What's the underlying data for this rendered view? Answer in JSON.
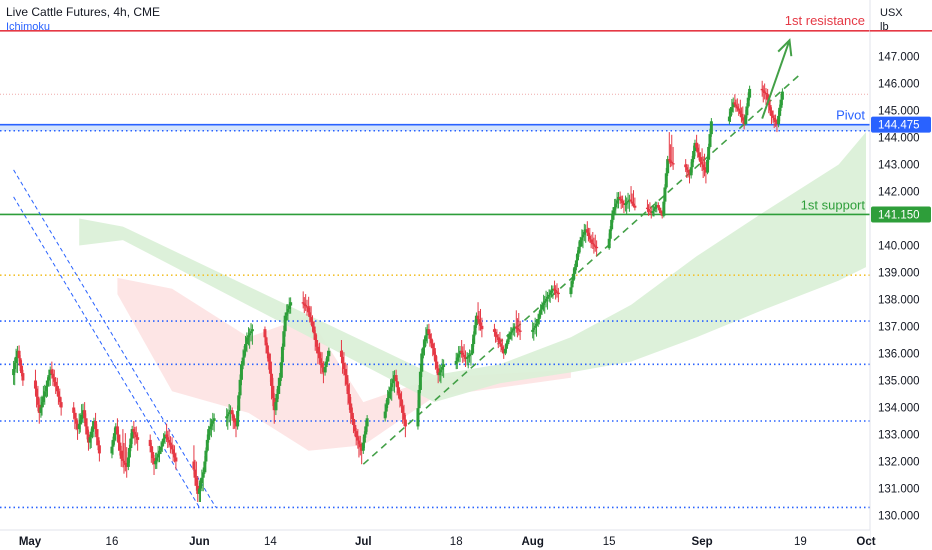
{
  "header": {
    "title": "Live Cattle Futures, 4h, CME",
    "indicator": "Ichimoku"
  },
  "price_axis": {
    "currency": "USX",
    "unit": "lb",
    "ticks": [
      "147.000",
      "146.000",
      "145.000",
      "144.000",
      "143.000",
      "142.000",
      "141.000",
      "140.000",
      "139.000",
      "138.000",
      "137.000",
      "136.000",
      "135.000",
      "134.000",
      "133.000",
      "132.000",
      "131.000",
      "130.000"
    ]
  },
  "time_axis": {
    "labels": [
      "May",
      "16",
      "Jun",
      "14",
      "Jul",
      "18",
      "Aug",
      "15",
      "Sep",
      "19",
      "Oct"
    ]
  },
  "levels": {
    "resistance": {
      "label": "1st resistance",
      "price": 147.95,
      "color": "#e53945"
    },
    "pivot": {
      "label": "Pivot",
      "price": 144.475,
      "badge": "144.475",
      "color": "#2962ff"
    },
    "support": {
      "label": "1st support",
      "price": 141.15,
      "badge": "141.150",
      "color": "#2e9e3a"
    }
  },
  "colors": {
    "up": "#2e9e3a",
    "down": "#e53945",
    "cloud_bull": "#d9f0d6",
    "cloud_bear": "#fde2e2",
    "dotted_blue": "#2962ff",
    "dotted_orange": "#f2c230",
    "arrow": "#43a047"
  },
  "chart_data": {
    "type": "candlestick",
    "title": "Live Cattle Futures, 4h, CME",
    "yunit": "USX / lb",
    "ylim": [
      129.8,
      148.6
    ],
    "x_range": [
      "2022-04-28",
      "2022-10-01"
    ],
    "x_ticks": [
      "May",
      "16",
      "Jun",
      "14",
      "Jul",
      "18",
      "Aug",
      "15",
      "Sep",
      "19",
      "Oct"
    ],
    "horizontal_lines": [
      {
        "price": 147.95,
        "style": "solid",
        "color": "#e53945",
        "label": "1st resistance"
      },
      {
        "price": 144.475,
        "style": "solid",
        "color": "#2962ff",
        "label": "Pivot"
      },
      {
        "price": 144.25,
        "style": "dotted",
        "color": "#2962ff"
      },
      {
        "price": 141.15,
        "style": "solid",
        "color": "#2e9e3a",
        "label": "1st support"
      },
      {
        "price": 138.9,
        "style": "dotted",
        "color": "#f2c230"
      },
      {
        "price": 137.2,
        "style": "dotted",
        "color": "#2962ff"
      },
      {
        "price": 135.6,
        "style": "dotted",
        "color": "#2962ff"
      },
      {
        "price": 133.5,
        "style": "dotted",
        "color": "#2962ff"
      },
      {
        "price": 130.3,
        "style": "dotted",
        "color": "#2962ff"
      }
    ],
    "pivot_zone": [
      144.25,
      144.475
    ],
    "trendline": {
      "from": [
        "2022-07-01",
        131.9
      ],
      "to": [
        "2022-09-19",
        146.35
      ],
      "style": "dashed",
      "color": "#43a047"
    },
    "channel_lines": [
      {
        "from": [
          "2022-04-28",
          141.8
        ],
        "to": [
          "2022-06-01",
          130.3
        ],
        "style": "dashed",
        "color": "#2962ff"
      },
      {
        "from": [
          "2022-04-28",
          142.8
        ],
        "to": [
          "2022-06-04",
          130.3
        ],
        "style": "dashed",
        "color": "#2962ff"
      }
    ],
    "forecast_arrow": {
      "from": [
        "2022-09-12",
        144.7
      ],
      "to": [
        "2022-09-17",
        147.6
      ]
    },
    "ohlc": [
      [
        "2022-04-28",
        135.2,
        136.4,
        134.6,
        136.1
      ],
      [
        "2022-04-29",
        136.1,
        136.3,
        134.8,
        135.0
      ],
      [
        "2022-05-02",
        135.0,
        135.4,
        133.4,
        133.8
      ],
      [
        "2022-05-03",
        133.8,
        135.0,
        133.5,
        134.6
      ],
      [
        "2022-05-04",
        134.6,
        135.6,
        134.2,
        135.4
      ],
      [
        "2022-05-05",
        135.4,
        135.7,
        134.5,
        134.8
      ],
      [
        "2022-05-06",
        134.8,
        135.1,
        133.7,
        134.0
      ],
      [
        "2022-05-09",
        134.0,
        134.2,
        132.8,
        133.2
      ],
      [
        "2022-05-10",
        133.2,
        134.3,
        132.9,
        133.9
      ],
      [
        "2022-05-11",
        133.9,
        134.2,
        132.4,
        132.7
      ],
      [
        "2022-05-12",
        132.7,
        133.7,
        132.3,
        133.5
      ],
      [
        "2022-05-13",
        133.5,
        133.8,
        132.0,
        132.3
      ],
      [
        "2022-05-16",
        132.3,
        133.5,
        132.0,
        133.3
      ],
      [
        "2022-05-17",
        133.3,
        133.6,
        131.8,
        132.1
      ],
      [
        "2022-05-18",
        132.1,
        133.2,
        131.4,
        131.8
      ],
      [
        "2022-05-19",
        131.8,
        133.4,
        131.6,
        133.2
      ],
      [
        "2022-05-20",
        133.2,
        133.5,
        132.4,
        132.8
      ],
      [
        "2022-05-23",
        132.8,
        133.0,
        131.5,
        131.9
      ],
      [
        "2022-05-24",
        131.9,
        132.7,
        131.6,
        132.4
      ],
      [
        "2022-05-25",
        132.4,
        133.2,
        132.2,
        133.0
      ],
      [
        "2022-05-26",
        133.0,
        133.4,
        132.3,
        132.6
      ],
      [
        "2022-05-27",
        132.6,
        132.9,
        131.7,
        132.0
      ],
      [
        "2022-05-31",
        132.0,
        132.6,
        130.5,
        130.8
      ],
      [
        "2022-06-01",
        130.8,
        131.9,
        130.3,
        131.6
      ],
      [
        "2022-06-02",
        131.6,
        133.4,
        131.5,
        133.2
      ],
      [
        "2022-06-03",
        133.2,
        133.9,
        132.8,
        133.6
      ],
      [
        "2022-06-06",
        133.6,
        134.2,
        133.1,
        133.9
      ],
      [
        "2022-06-07",
        133.9,
        134.0,
        132.9,
        133.3
      ],
      [
        "2022-06-08",
        133.3,
        135.8,
        133.1,
        135.6
      ],
      [
        "2022-06-09",
        135.6,
        136.9,
        135.3,
        136.6
      ],
      [
        "2022-06-10",
        136.6,
        137.2,
        136.1,
        136.9
      ],
      [
        "2022-06-13",
        136.9,
        137.0,
        135.4,
        135.7
      ],
      [
        "2022-06-14",
        135.7,
        136.0,
        133.4,
        133.9
      ],
      [
        "2022-06-15",
        133.9,
        135.4,
        133.6,
        135.1
      ],
      [
        "2022-06-16",
        135.1,
        137.6,
        134.9,
        137.4
      ],
      [
        "2022-06-17",
        137.4,
        138.2,
        137.1,
        137.9
      ],
      [
        "2022-06-20",
        137.9,
        138.3,
        137.4,
        137.7
      ],
      [
        "2022-06-21",
        137.7,
        138.1,
        136.8,
        137.0
      ],
      [
        "2022-06-22",
        137.0,
        137.2,
        135.6,
        136.0
      ],
      [
        "2022-06-23",
        136.0,
        136.4,
        134.9,
        135.3
      ],
      [
        "2022-06-24",
        135.3,
        136.3,
        135.1,
        136.1
      ],
      [
        "2022-06-27",
        136.1,
        136.5,
        134.8,
        135.2
      ],
      [
        "2022-06-28",
        135.2,
        135.6,
        133.4,
        133.8
      ],
      [
        "2022-06-29",
        133.8,
        134.0,
        132.6,
        132.9
      ],
      [
        "2022-06-30",
        132.9,
        133.2,
        131.9,
        132.4
      ],
      [
        "2022-07-01",
        132.4,
        133.8,
        132.2,
        133.6
      ],
      [
        "2022-07-05",
        133.6,
        134.9,
        133.4,
        134.6
      ],
      [
        "2022-07-06",
        134.6,
        135.5,
        134.1,
        135.2
      ],
      [
        "2022-07-07",
        135.2,
        135.4,
        134.0,
        134.3
      ],
      [
        "2022-07-08",
        134.3,
        134.6,
        132.9,
        133.3
      ],
      [
        "2022-07-11",
        133.3,
        136.3,
        133.1,
        136.0
      ],
      [
        "2022-07-12",
        136.0,
        137.2,
        135.7,
        136.9
      ],
      [
        "2022-07-13",
        136.9,
        137.1,
        135.9,
        136.2
      ],
      [
        "2022-07-14",
        136.2,
        136.4,
        134.9,
        135.2
      ],
      [
        "2022-07-15",
        135.2,
        135.9,
        134.8,
        135.6
      ],
      [
        "2022-07-18",
        135.6,
        136.4,
        135.3,
        136.1
      ],
      [
        "2022-07-19",
        136.1,
        136.5,
        135.5,
        135.8
      ],
      [
        "2022-07-20",
        135.8,
        136.2,
        135.4,
        136.0
      ],
      [
        "2022-07-21",
        136.0,
        137.6,
        135.9,
        137.4
      ],
      [
        "2022-07-22",
        137.4,
        137.9,
        136.6,
        136.9
      ],
      [
        "2022-07-25",
        136.9,
        137.1,
        136.2,
        136.5
      ],
      [
        "2022-07-26",
        136.5,
        136.8,
        135.8,
        136.0
      ],
      [
        "2022-07-27",
        136.0,
        136.9,
        135.9,
        136.7
      ],
      [
        "2022-07-28",
        136.7,
        137.2,
        136.4,
        137.0
      ],
      [
        "2022-07-29",
        137.0,
        137.6,
        136.5,
        136.8
      ],
      [
        "2022-08-01",
        136.8,
        137.4,
        136.4,
        137.1
      ],
      [
        "2022-08-02",
        137.1,
        138.0,
        136.9,
        137.8
      ],
      [
        "2022-08-03",
        137.8,
        138.4,
        137.4,
        138.1
      ],
      [
        "2022-08-04",
        138.1,
        138.6,
        137.8,
        138.4
      ],
      [
        "2022-08-05",
        138.4,
        138.7,
        137.9,
        138.2
      ],
      [
        "2022-08-08",
        138.2,
        139.4,
        138.0,
        139.2
      ],
      [
        "2022-08-09",
        139.2,
        140.4,
        139.0,
        140.2
      ],
      [
        "2022-08-10",
        140.2,
        140.9,
        139.8,
        140.6
      ],
      [
        "2022-08-11",
        140.6,
        140.9,
        139.9,
        140.1
      ],
      [
        "2022-08-12",
        140.1,
        140.5,
        139.6,
        139.9
      ],
      [
        "2022-08-15",
        139.9,
        141.5,
        139.8,
        141.3
      ],
      [
        "2022-08-16",
        141.3,
        142.1,
        141.0,
        141.8
      ],
      [
        "2022-08-17",
        141.8,
        142.0,
        141.2,
        141.5
      ],
      [
        "2022-08-18",
        141.5,
        142.0,
        141.1,
        141.7
      ],
      [
        "2022-08-19",
        141.7,
        142.2,
        141.3,
        141.4
      ],
      [
        "2022-08-22",
        141.4,
        141.7,
        141.0,
        141.2
      ],
      [
        "2022-08-23",
        141.2,
        141.7,
        141.0,
        141.5
      ],
      [
        "2022-08-24",
        141.5,
        141.6,
        141.0,
        141.1
      ],
      [
        "2022-08-25",
        141.1,
        143.4,
        141.0,
        143.2
      ],
      [
        "2022-08-26",
        143.2,
        144.2,
        142.8,
        143.0
      ],
      [
        "2022-08-29",
        143.0,
        143.2,
        142.3,
        142.6
      ],
      [
        "2022-08-30",
        142.6,
        144.0,
        142.4,
        143.8
      ],
      [
        "2022-08-31",
        143.8,
        144.1,
        142.9,
        143.1
      ],
      [
        "2022-09-01",
        143.1,
        143.6,
        142.3,
        142.7
      ],
      [
        "2022-09-02",
        142.7,
        144.8,
        142.6,
        144.6
      ],
      [
        "2022-09-06",
        144.6,
        145.6,
        144.4,
        145.3
      ],
      [
        "2022-09-07",
        145.3,
        145.6,
        144.8,
        145.0
      ],
      [
        "2022-09-08",
        145.0,
        145.4,
        144.3,
        144.5
      ],
      [
        "2022-09-09",
        144.5,
        146.0,
        144.4,
        145.8
      ],
      [
        "2022-09-12",
        145.8,
        146.1,
        145.2,
        145.6
      ],
      [
        "2022-09-13",
        145.6,
        145.8,
        144.5,
        144.8
      ],
      [
        "2022-09-14",
        144.8,
        145.0,
        144.2,
        144.5
      ],
      [
        "2022-09-15",
        144.5,
        145.9,
        144.3,
        145.7
      ]
    ],
    "ichimoku_cloud": {
      "bull": [
        {
          "t": "2022-05-10",
          "top": 141.0,
          "bot": 140.0
        },
        {
          "t": "2022-05-18",
          "top": 140.7,
          "bot": 140.2
        },
        {
          "t": "2022-07-14",
          "top": 135.2,
          "bot": 134.2
        },
        {
          "t": "2022-07-26",
          "top": 135.6,
          "bot": 134.9
        },
        {
          "t": "2022-08-08",
          "top": 136.6,
          "bot": 135.3
        },
        {
          "t": "2022-08-19",
          "top": 137.8,
          "bot": 135.7
        },
        {
          "t": "2022-08-31",
          "top": 139.6,
          "bot": 136.6
        },
        {
          "t": "2022-09-12",
          "top": 141.2,
          "bot": 137.6
        },
        {
          "t": "2022-09-26",
          "top": 143.0,
          "bot": 138.7
        },
        {
          "t": "2022-10-01",
          "top": 144.2,
          "bot": 139.2
        }
      ],
      "bear": [
        {
          "t": "2022-05-17",
          "top": 138.8,
          "bot": 138.2
        },
        {
          "t": "2022-05-27",
          "top": 138.4,
          "bot": 134.6
        },
        {
          "t": "2022-06-10",
          "top": 136.6,
          "bot": 133.8
        },
        {
          "t": "2022-06-21",
          "top": 137.4,
          "bot": 132.4
        },
        {
          "t": "2022-07-01",
          "top": 134.2,
          "bot": 132.6
        },
        {
          "t": "2022-07-14",
          "top": 135.1,
          "bot": 134.4
        },
        {
          "t": "2022-08-08",
          "top": 135.4,
          "bot": 135.1
        }
      ]
    }
  }
}
